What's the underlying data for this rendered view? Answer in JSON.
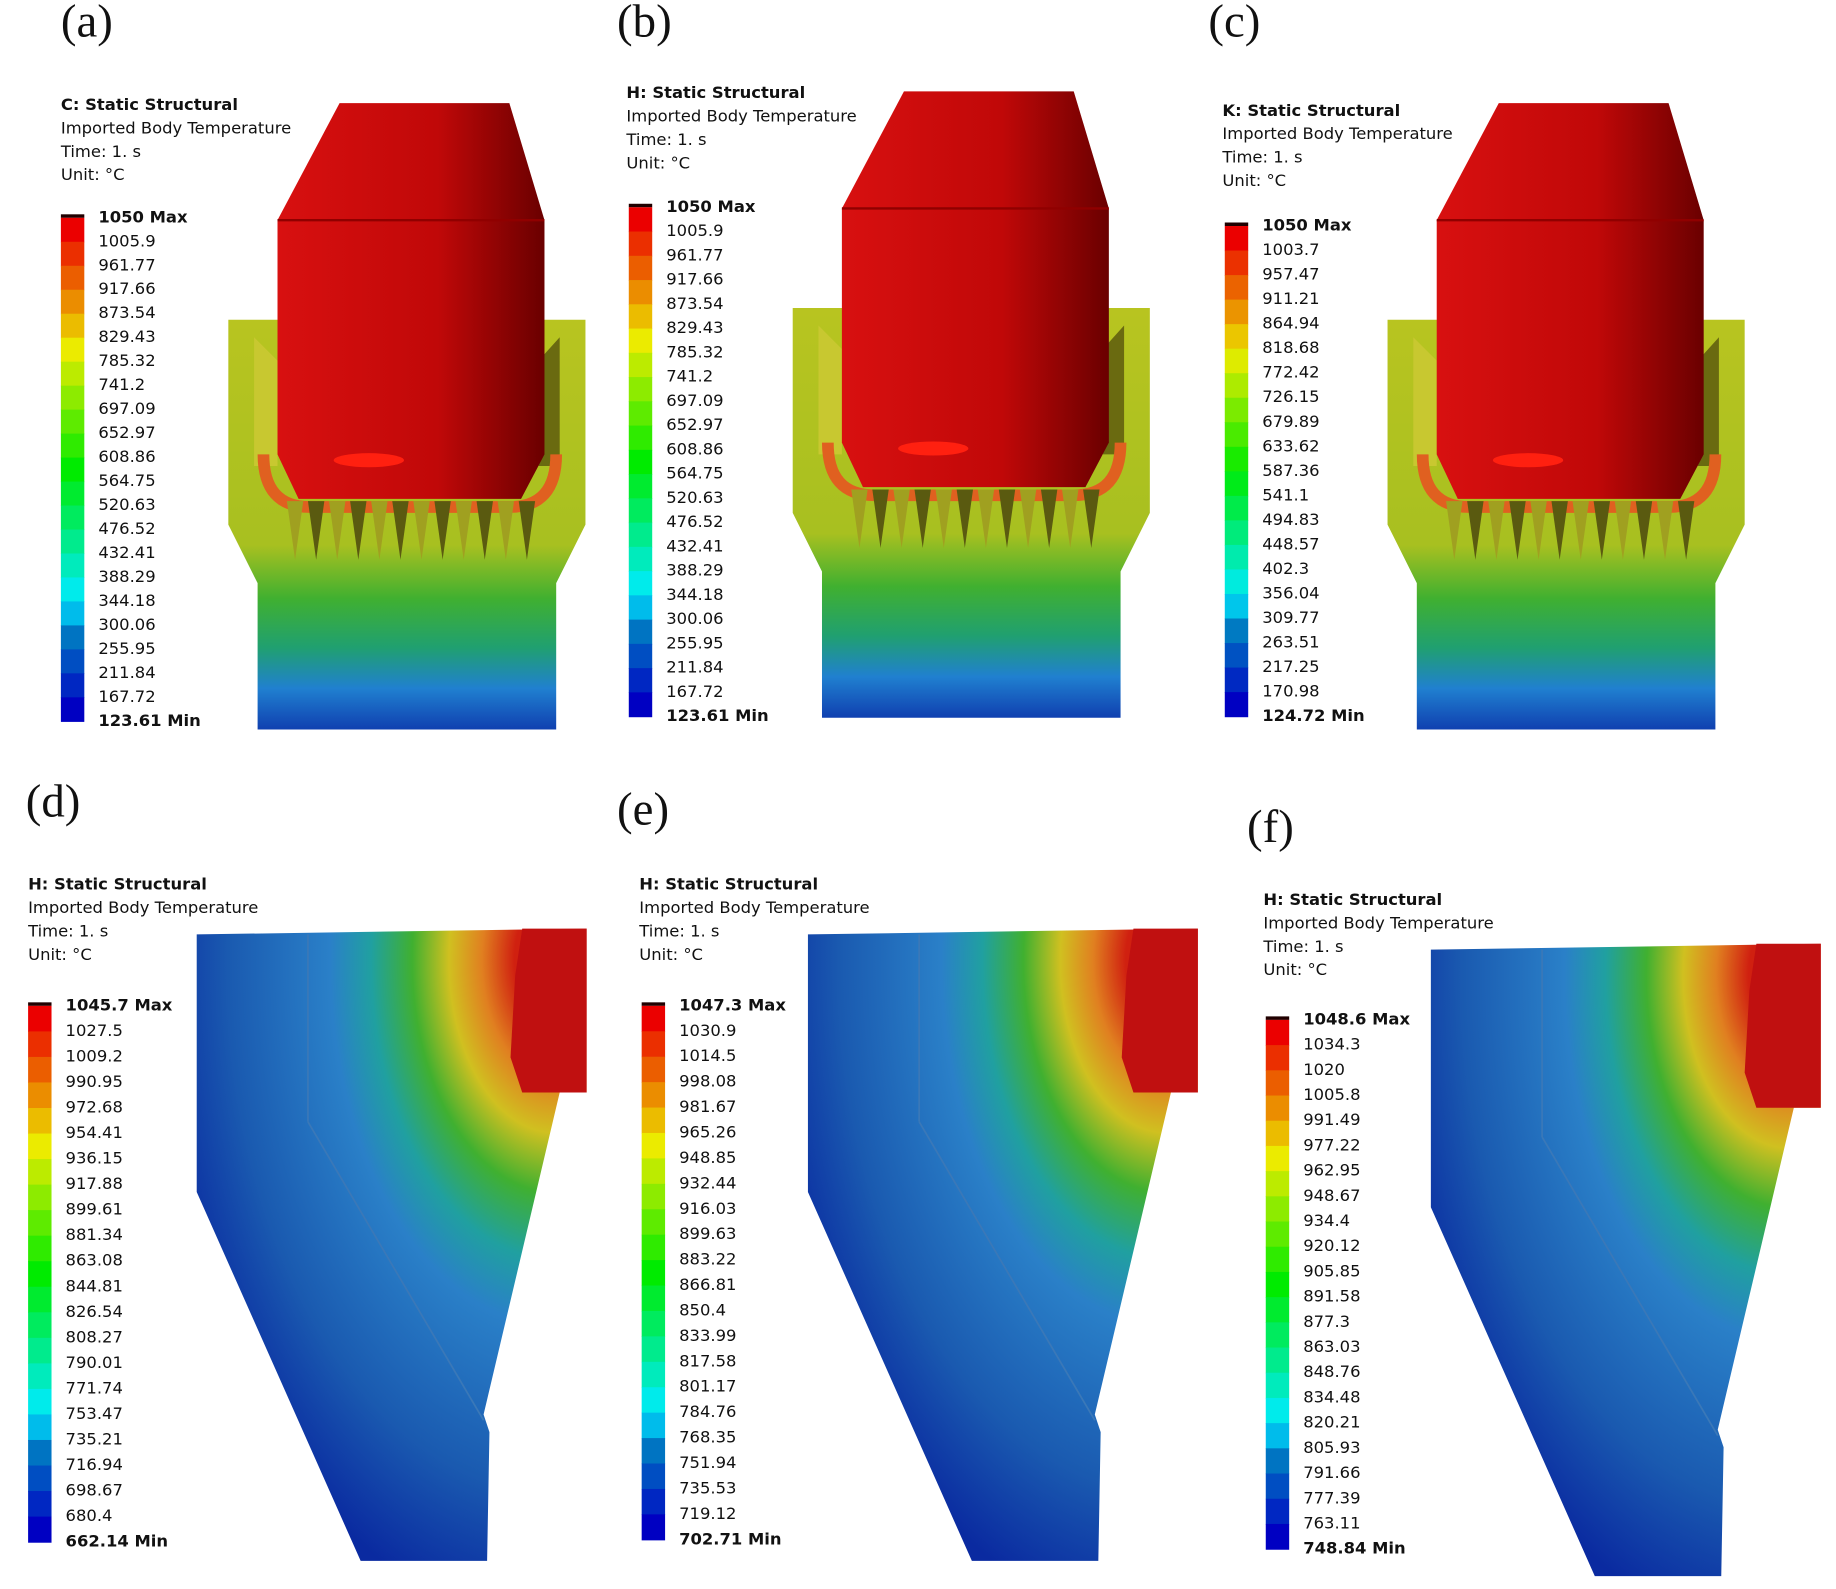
{
  "panels": [
    {
      "label": "(a)",
      "header": [
        "C: Static Structural",
        "Imported Body Temperature",
        "Time: 1. s",
        "Unit: °C"
      ],
      "legend": [
        "1050 Max",
        "1005.9",
        "961.77",
        "917.66",
        "873.54",
        "829.43",
        "785.32",
        "741.2",
        "697.09",
        "652.97",
        "608.86",
        "564.75",
        "520.63",
        "476.52",
        "432.41",
        "388.29",
        "344.18",
        "300.06",
        "255.95",
        "211.84",
        "167.72",
        "123.61 Min"
      ]
    },
    {
      "label": "(b)",
      "header": [
        "H: Static Structural",
        "Imported Body Temperature",
        "Time: 1. s",
        "Unit: °C"
      ],
      "legend": [
        "1050 Max",
        "1005.9",
        "961.77",
        "917.66",
        "873.54",
        "829.43",
        "785.32",
        "741.2",
        "697.09",
        "652.97",
        "608.86",
        "564.75",
        "520.63",
        "476.52",
        "432.41",
        "388.29",
        "344.18",
        "300.06",
        "255.95",
        "211.84",
        "167.72",
        "123.61 Min"
      ]
    },
    {
      "label": "(c)",
      "header": [
        "K: Static Structural",
        "Imported Body Temperature",
        "Time: 1. s",
        "Unit: °C"
      ],
      "legend": [
        "1050 Max",
        "1003.7",
        "957.47",
        "911.21",
        "864.94",
        "818.68",
        "772.42",
        "726.15",
        "679.89",
        "633.62",
        "587.36",
        "541.1",
        "494.83",
        "448.57",
        "402.3",
        "356.04",
        "309.77",
        "263.51",
        "217.25",
        "170.98",
        "124.72 Min"
      ]
    },
    {
      "label": "(d)",
      "header": [
        "H: Static Structural",
        "Imported Body Temperature",
        "Time: 1. s",
        "Unit: °C"
      ],
      "legend": [
        "1045.7 Max",
        "1027.5",
        "1009.2",
        "990.95",
        "972.68",
        "954.41",
        "936.15",
        "917.88",
        "899.61",
        "881.34",
        "863.08",
        "844.81",
        "826.54",
        "808.27",
        "790.01",
        "771.74",
        "753.47",
        "735.21",
        "716.94",
        "698.67",
        "680.4",
        "662.14 Min"
      ]
    },
    {
      "label": "(e)",
      "header": [
        "H: Static Structural",
        "Imported Body Temperature",
        "Time: 1. s",
        "Unit: °C"
      ],
      "legend": [
        "1047.3 Max",
        "1030.9",
        "1014.5",
        "998.08",
        "981.67",
        "965.26",
        "948.85",
        "932.44",
        "916.03",
        "899.63",
        "883.22",
        "866.81",
        "850.4",
        "833.99",
        "817.58",
        "801.17",
        "784.76",
        "768.35",
        "751.94",
        "735.53",
        "719.12",
        "702.71 Min"
      ]
    },
    {
      "label": "(f)",
      "header": [
        "H: Static Structural",
        "Imported Body Temperature",
        "Time: 1. s",
        "Unit: °C"
      ],
      "legend": [
        "1048.6 Max",
        "1034.3",
        "1020",
        "1005.8",
        "991.49",
        "977.22",
        "962.95",
        "948.67",
        "934.4",
        "920.12",
        "905.85",
        "891.58",
        "877.3",
        "863.03",
        "848.76",
        "834.48",
        "820.21",
        "805.93",
        "791.66",
        "777.39",
        "763.11",
        "748.84 Min"
      ]
    }
  ]
}
